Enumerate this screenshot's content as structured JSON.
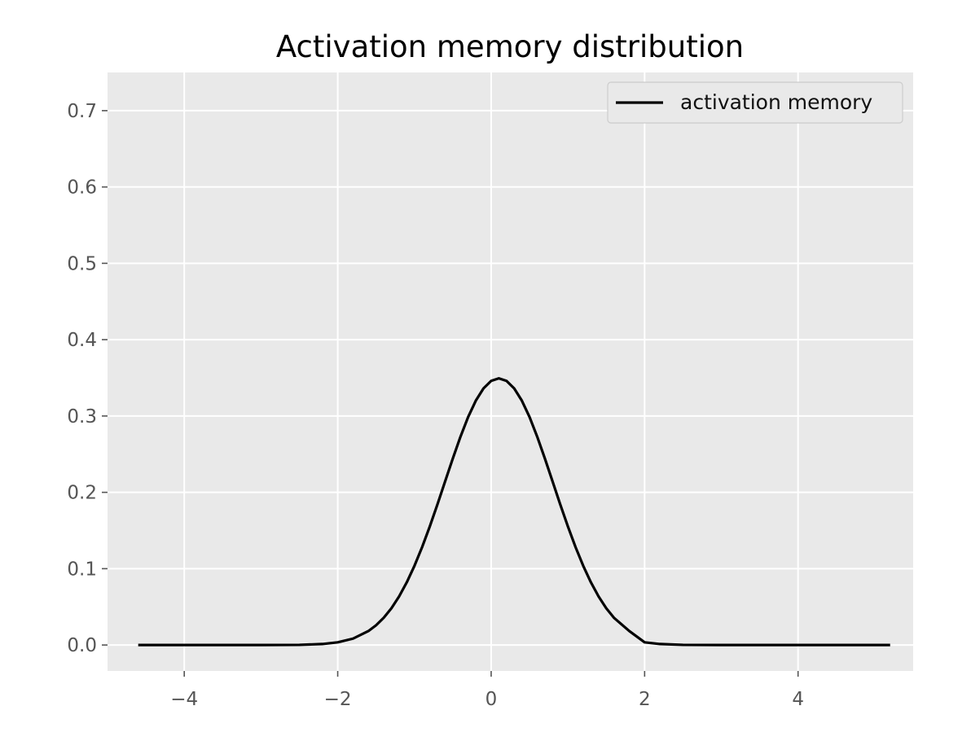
{
  "chart_data": {
    "type": "line",
    "title": "Activation memory distribution",
    "xlabel": "",
    "ylabel": "",
    "xlim": [
      -5.0,
      5.5
    ],
    "ylim": [
      -0.034,
      0.75
    ],
    "xticks": [
      -4,
      -2,
      0,
      2,
      4
    ],
    "xtick_labels": [
      "−4",
      "−2",
      "0",
      "2",
      "4"
    ],
    "yticks": [
      0.0,
      0.1,
      0.2,
      0.3,
      0.4,
      0.5,
      0.6,
      0.7
    ],
    "ytick_labels": [
      "0.0",
      "0.1",
      "0.2",
      "0.3",
      "0.4",
      "0.5",
      "0.6",
      "0.7"
    ],
    "grid": true,
    "legend_position": "top-right",
    "series": [
      {
        "name": "activation memory",
        "color": "#000000",
        "x": [
          -4.6,
          -3.0,
          -2.5,
          -2.2,
          -2.0,
          -1.8,
          -1.6,
          -1.5,
          -1.4,
          -1.3,
          -1.2,
          -1.1,
          -1.0,
          -0.9,
          -0.8,
          -0.7,
          -0.6,
          -0.5,
          -0.4,
          -0.3,
          -0.2,
          -0.1,
          0.0,
          0.1,
          0.2,
          0.3,
          0.4,
          0.5,
          0.6,
          0.7,
          0.8,
          0.9,
          1.0,
          1.1,
          1.2,
          1.3,
          1.4,
          1.5,
          1.6,
          1.8,
          2.0,
          2.2,
          2.5,
          3.0,
          5.2
        ],
        "y": [
          0.0,
          0.0,
          0.0002,
          0.0013,
          0.0035,
          0.0084,
          0.0183,
          0.0259,
          0.0357,
          0.0482,
          0.0636,
          0.0821,
          0.1037,
          0.1282,
          0.1553,
          0.1843,
          0.2144,
          0.2443,
          0.2729,
          0.2987,
          0.3201,
          0.3361,
          0.346,
          0.3493,
          0.346,
          0.3361,
          0.3201,
          0.2987,
          0.2729,
          0.2443,
          0.2144,
          0.1843,
          0.1553,
          0.1282,
          0.1037,
          0.0821,
          0.0636,
          0.0482,
          0.0357,
          0.0183,
          0.0035,
          0.0013,
          0.0002,
          0.0,
          0.0
        ]
      }
    ],
    "colors": {
      "figure_background": "#ffffff",
      "axes_background": "#e9e9e9",
      "grid": "#ffffff",
      "tick_label": "#555555",
      "legend_background": "#e9e9e9",
      "legend_border": "#cccccc"
    }
  }
}
